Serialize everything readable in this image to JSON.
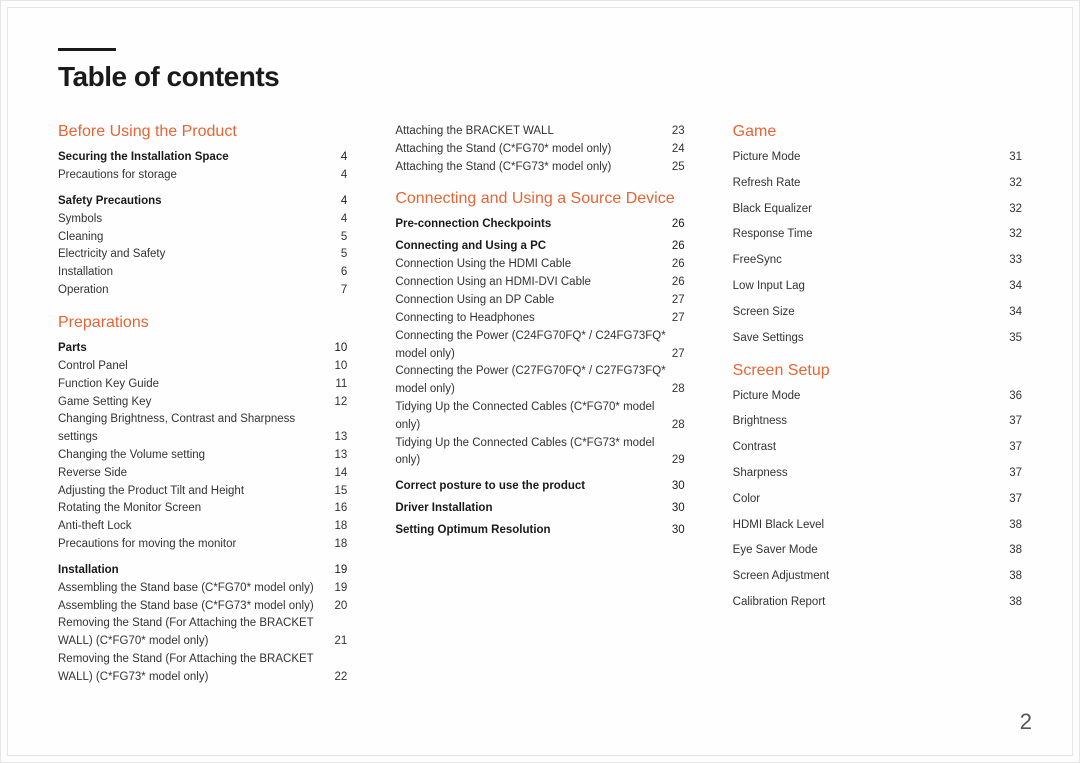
{
  "page_title": "Table of contents",
  "page_number": "2",
  "colors": {
    "accent": "#e86435",
    "text": "#222222",
    "rule": "#1a1a1a"
  },
  "columns": [
    {
      "sections": [
        {
          "title": "Before Using the Product",
          "groups": [
            {
              "title": "Securing the Installation Space",
              "page": "4",
              "items": [
                {
                  "label": "Precautions for storage",
                  "page": "4"
                }
              ]
            },
            {
              "title": "Safety Precautions",
              "page": "4",
              "items": [
                {
                  "label": "Symbols",
                  "page": "4"
                },
                {
                  "label": "Cleaning",
                  "page": "5"
                },
                {
                  "label": "Electricity and Safety",
                  "page": "5"
                },
                {
                  "label": "Installation",
                  "page": "6"
                },
                {
                  "label": "Operation",
                  "page": "7"
                }
              ]
            }
          ]
        },
        {
          "title": "Preparations",
          "groups": [
            {
              "title": "Parts",
              "page": "10",
              "items": [
                {
                  "label": "Control Panel",
                  "page": "10"
                },
                {
                  "label": "Function Key Guide",
                  "page": "11"
                },
                {
                  "label": "Game Setting Key",
                  "page": "12"
                },
                {
                  "label": "Changing Brightness, Contrast and Sharpness settings",
                  "page": "13"
                },
                {
                  "label": "Changing the Volume setting",
                  "page": "13"
                },
                {
                  "label": "Reverse Side",
                  "page": "14"
                },
                {
                  "label": "Adjusting the Product Tilt and Height",
                  "page": "15"
                },
                {
                  "label": "Rotating the Monitor Screen",
                  "page": "16"
                },
                {
                  "label": "Anti-theft Lock",
                  "page": "18"
                },
                {
                  "label": "Precautions for moving the monitor",
                  "page": "18"
                }
              ]
            },
            {
              "title": "Installation",
              "page": "19",
              "items": [
                {
                  "label": "Assembling the Stand base (C*FG70* model only)",
                  "page": "19"
                },
                {
                  "label": "Assembling the Stand base (C*FG73* model only)",
                  "page": "20"
                },
                {
                  "label": "Removing the Stand (For Attaching the BRACKET WALL) (C*FG70* model only)",
                  "page": "21"
                },
                {
                  "label": "Removing the Stand (For Attaching the BRACKET WALL) (C*FG73* model only)",
                  "page": "22"
                }
              ]
            }
          ]
        }
      ]
    },
    {
      "sections": [
        {
          "title": null,
          "groups": [
            {
              "title": null,
              "page": null,
              "items": [
                {
                  "label": "Attaching the BRACKET WALL",
                  "page": "23"
                },
                {
                  "label": "Attaching the Stand (C*FG70* model only)",
                  "page": "24"
                },
                {
                  "label": "Attaching the Stand (C*FG73* model only)",
                  "page": "25"
                }
              ]
            }
          ]
        },
        {
          "title": "Connecting and Using a Source Device",
          "groups": [
            {
              "title": "Pre-connection Checkpoints",
              "page": "26",
              "items": []
            },
            {
              "title": "Connecting and Using a PC",
              "page": "26",
              "items": [
                {
                  "label": "Connection Using the HDMI Cable",
                  "page": "26"
                },
                {
                  "label": "Connection Using an HDMI-DVI Cable",
                  "page": "26"
                },
                {
                  "label": "Connection Using an DP Cable",
                  "page": "27"
                },
                {
                  "label": "Connecting to Headphones",
                  "page": "27"
                },
                {
                  "label": "Connecting the Power (C24FG70FQ* / C24FG73FQ* model only)",
                  "page": "27"
                },
                {
                  "label": "Connecting the Power (C27FG70FQ* / C27FG73FQ* model only)",
                  "page": "28"
                },
                {
                  "label": "Tidying Up the Connected Cables (C*FG70* model only)",
                  "page": "28"
                },
                {
                  "label": "Tidying Up the Connected Cables (C*FG73* model only)",
                  "page": "29"
                }
              ]
            },
            {
              "title": "Correct posture to use the product",
              "page": "30",
              "items": []
            },
            {
              "title": "Driver Installation",
              "page": "30",
              "items": []
            },
            {
              "title": "Setting Optimum Resolution",
              "page": "30",
              "items": []
            }
          ]
        }
      ]
    },
    {
      "sections": [
        {
          "title": "Game",
          "class": "game",
          "groups": [
            {
              "title": null,
              "page": null,
              "items": [
                {
                  "label": "Picture Mode",
                  "page": "31"
                },
                {
                  "label": "Refresh Rate",
                  "page": "32"
                },
                {
                  "label": "Black Equalizer",
                  "page": "32"
                },
                {
                  "label": "Response Time",
                  "page": "32"
                },
                {
                  "label": "FreeSync",
                  "page": "33"
                },
                {
                  "label": "Low Input Lag",
                  "page": "34"
                },
                {
                  "label": "Screen Size",
                  "page": "34"
                },
                {
                  "label": "Save Settings",
                  "page": "35"
                }
              ]
            }
          ]
        },
        {
          "title": "Screen Setup",
          "class": "screen",
          "groups": [
            {
              "title": null,
              "page": null,
              "items": [
                {
                  "label": "Picture Mode",
                  "page": "36"
                },
                {
                  "label": "Brightness",
                  "page": "37"
                },
                {
                  "label": "Contrast",
                  "page": "37"
                },
                {
                  "label": "Sharpness",
                  "page": "37"
                },
                {
                  "label": "Color",
                  "page": "37"
                },
                {
                  "label": "HDMI Black Level",
                  "page": "38"
                },
                {
                  "label": "Eye Saver Mode",
                  "page": "38"
                },
                {
                  "label": "Screen Adjustment",
                  "page": "38"
                },
                {
                  "label": "Calibration Report",
                  "page": "38"
                }
              ]
            }
          ]
        }
      ]
    }
  ]
}
